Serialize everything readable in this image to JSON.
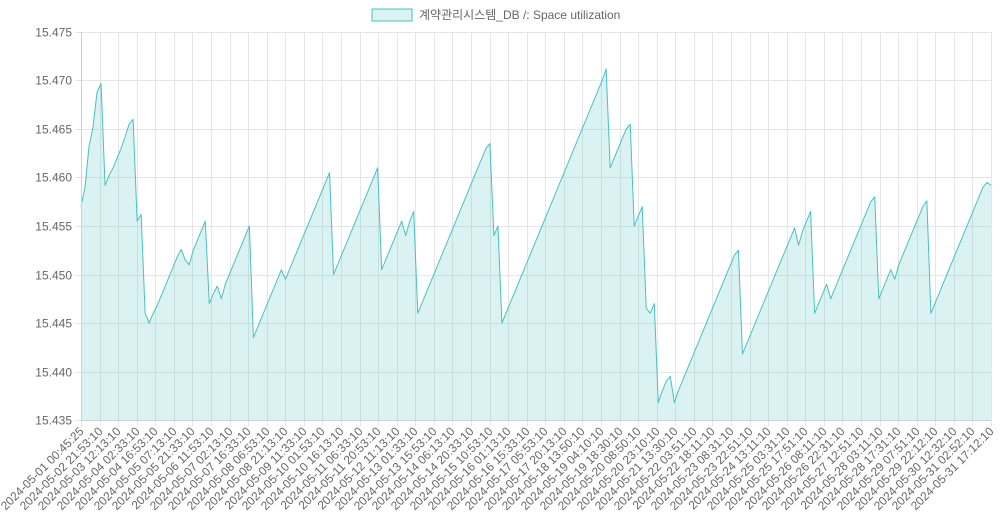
{
  "chart_data": {
    "type": "area",
    "title": "",
    "xlabel": "",
    "ylabel": "",
    "legend_position": "top-center",
    "grid": true,
    "ylim": [
      15.435,
      15.475
    ],
    "yticks": [
      "15.435",
      "15.440",
      "15.445",
      "15.450",
      "15.455",
      "15.460",
      "15.465",
      "15.470",
      "15.475"
    ],
    "xticks": [
      "2024-05-01 00:45:25",
      "2024-05-02 21:53:10",
      "2024-05-03 12:13:10",
      "2024-05-04 02:33:10",
      "2024-05-04 16:53:10",
      "2024-05-05 07:13:10",
      "2024-05-05 21:33:10",
      "2024-05-06 11:53:10",
      "2024-05-07 02:13:10",
      "2024-05-07 16:33:10",
      "2024-05-08 06:53:10",
      "2024-05-08 21:13:10",
      "2024-05-09 11:33:10",
      "2024-05-10 01:53:10",
      "2024-05-10 16:13:10",
      "2024-05-11 06:33:10",
      "2024-05-11 20:53:10",
      "2024-05-12 11:13:10",
      "2024-05-13 01:33:10",
      "2024-05-13 15:53:10",
      "2024-05-14 06:13:10",
      "2024-05-14 20:33:10",
      "2024-05-15 10:53:10",
      "2024-05-16 01:13:10",
      "2024-05-16 15:33:10",
      "2024-05-17 05:53:10",
      "2024-05-17 20:13:10",
      "2024-05-18 13:50:10",
      "2024-05-19 04:10:10",
      "2024-05-19 18:30:10",
      "2024-05-20 08:50:10",
      "2024-05-20 23:10:10",
      "2024-05-21 13:30:10",
      "2024-05-22 03:51:10",
      "2024-05-22 18:11:10",
      "2024-05-23 08:31:10",
      "2024-05-23 22:51:10",
      "2024-05-24 13:11:10",
      "2024-05-25 03:31:10",
      "2024-05-25 17:51:10",
      "2024-05-26 08:11:10",
      "2024-05-26 22:31:10",
      "2024-05-27 12:51:10",
      "2024-05-28 03:11:10",
      "2024-05-28 17:31:10",
      "2024-05-29 07:51:10",
      "2024-05-29 22:12:10",
      "2024-05-30 12:32:10",
      "2024-05-31 02:52:10",
      "2024-05-31 17:12:10"
    ],
    "series": [
      {
        "name": "계약관리시스템_DB /: Space utilization",
        "color": "#4bc0c0",
        "fill": "rgba(75,192,192,0.2)",
        "values": [
          15.457,
          15.459,
          15.4632,
          15.4652,
          15.4688,
          15.4697,
          15.4592,
          15.4602,
          15.461,
          15.462,
          15.463,
          15.4642,
          15.4655,
          15.466,
          15.4555,
          15.4562,
          15.446,
          15.445,
          15.446,
          15.4468,
          15.4478,
          15.4488,
          15.4498,
          15.4508,
          15.4518,
          15.4526,
          15.4515,
          15.451,
          15.4525,
          15.4535,
          15.4545,
          15.4555,
          15.447,
          15.448,
          15.4488,
          15.4475,
          15.449,
          15.45,
          15.451,
          15.452,
          15.453,
          15.454,
          15.455,
          15.4435,
          15.4445,
          15.4455,
          15.4465,
          15.4475,
          15.4485,
          15.4495,
          15.4505,
          15.4495,
          15.4505,
          15.4515,
          15.4525,
          15.4535,
          15.4545,
          15.4555,
          15.4565,
          15.4575,
          15.4585,
          15.4595,
          15.4605,
          15.45,
          15.451,
          15.452,
          15.453,
          15.454,
          15.455,
          15.456,
          15.457,
          15.458,
          15.459,
          15.46,
          15.461,
          15.4505,
          15.4515,
          15.4525,
          15.4535,
          15.4545,
          15.4555,
          15.454,
          15.4555,
          15.4565,
          15.446,
          15.447,
          15.448,
          15.449,
          15.45,
          15.451,
          15.452,
          15.453,
          15.454,
          15.455,
          15.456,
          15.457,
          15.458,
          15.459,
          15.46,
          15.461,
          15.462,
          15.463,
          15.4635,
          15.454,
          15.455,
          15.445,
          15.446,
          15.447,
          15.448,
          15.449,
          15.45,
          15.451,
          15.452,
          15.453,
          15.454,
          15.455,
          15.456,
          15.457,
          15.458,
          15.459,
          15.46,
          15.461,
          15.462,
          15.463,
          15.464,
          15.465,
          15.466,
          15.467,
          15.468,
          15.469,
          15.47,
          15.4712,
          15.461,
          15.462,
          15.463,
          15.464,
          15.465,
          15.4655,
          15.455,
          15.456,
          15.457,
          15.4465,
          15.446,
          15.447,
          15.4368,
          15.438,
          15.439,
          15.4395,
          15.4368,
          15.438,
          15.439,
          15.44,
          15.441,
          15.442,
          15.443,
          15.444,
          15.445,
          15.446,
          15.447,
          15.448,
          15.449,
          15.45,
          15.451,
          15.452,
          15.4525,
          15.4418,
          15.4428,
          15.4438,
          15.4448,
          15.4458,
          15.4468,
          15.4478,
          15.4488,
          15.4498,
          15.4508,
          15.4518,
          15.4528,
          15.4538,
          15.4548,
          15.453,
          15.4545,
          15.4555,
          15.4565,
          15.446,
          15.447,
          15.448,
          15.449,
          15.4475,
          15.4485,
          15.4495,
          15.4505,
          15.4515,
          15.4525,
          15.4535,
          15.4545,
          15.4555,
          15.4565,
          15.4575,
          15.458,
          15.4475,
          15.4485,
          15.4495,
          15.4505,
          15.4495,
          15.451,
          15.452,
          15.453,
          15.454,
          15.455,
          15.456,
          15.457,
          15.4576,
          15.446,
          15.447,
          15.448,
          15.449,
          15.45,
          15.451,
          15.452,
          15.453,
          15.454,
          15.455,
          15.456,
          15.457,
          15.458,
          15.459,
          15.4595,
          15.4592
        ]
      }
    ]
  }
}
